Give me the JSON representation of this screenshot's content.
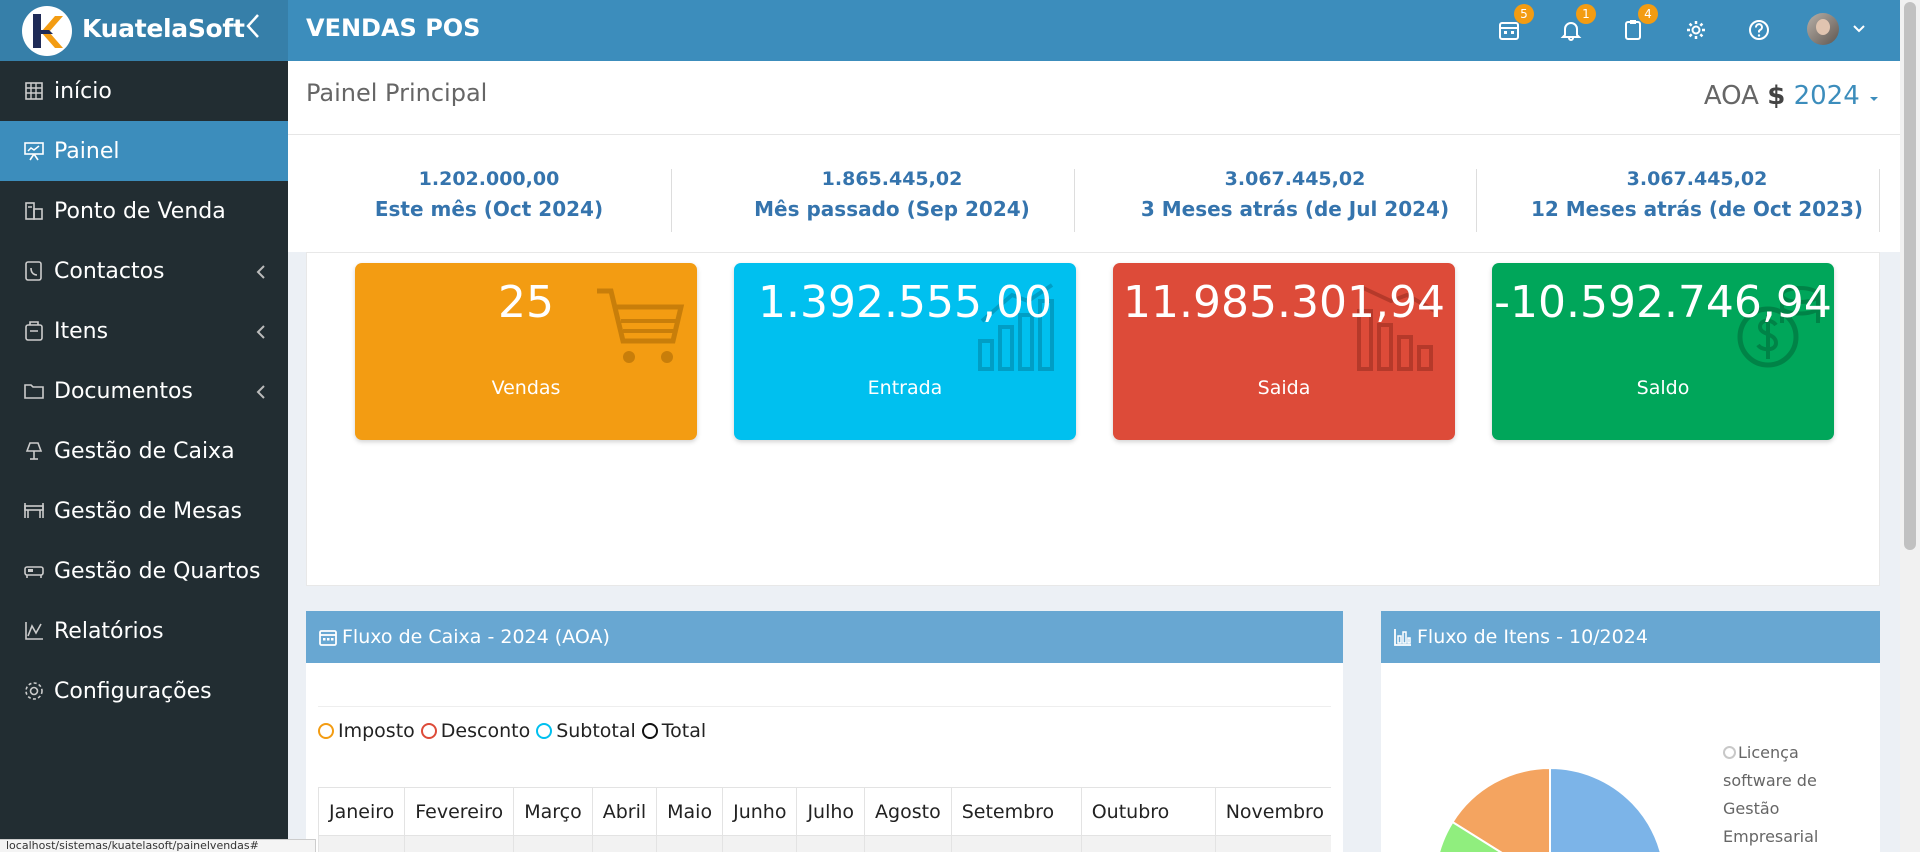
{
  "topbar": {
    "brand": "KuatelaSoft",
    "collapse_icon": "chevron-left-icon",
    "title": "VENDAS POS",
    "icons": [
      {
        "name": "calendar-icon",
        "badge": "5"
      },
      {
        "name": "bell-icon",
        "badge": "1"
      },
      {
        "name": "clipboard-icon",
        "badge": "4"
      },
      {
        "name": "gear-icon",
        "badge": ""
      },
      {
        "name": "help-icon",
        "badge": ""
      }
    ],
    "user_caret": "chevron-down-icon"
  },
  "sidebar": {
    "items": [
      {
        "label": "início",
        "icon": "grid-icon",
        "active": false,
        "has_children": false
      },
      {
        "label": "Painel",
        "icon": "presentation-icon",
        "active": true,
        "has_children": false
      },
      {
        "label": "Ponto de Venda",
        "icon": "pos-icon",
        "active": false,
        "has_children": false
      },
      {
        "label": "Contactos",
        "icon": "contacts-icon",
        "active": false,
        "has_children": true
      },
      {
        "label": "Itens",
        "icon": "items-icon",
        "active": false,
        "has_children": true
      },
      {
        "label": "Documentos",
        "icon": "folder-icon",
        "active": false,
        "has_children": true
      },
      {
        "label": "Gestão de Caixa",
        "icon": "lamp-icon",
        "active": false,
        "has_children": false
      },
      {
        "label": "Gestão de Mesas",
        "icon": "table-icon",
        "active": false,
        "has_children": false
      },
      {
        "label": "Gestão de Quartos",
        "icon": "bed-icon",
        "active": false,
        "has_children": false
      },
      {
        "label": "Relatórios",
        "icon": "chart-icon",
        "active": false,
        "has_children": false
      },
      {
        "label": "Configurações",
        "icon": "gear-icon",
        "active": false,
        "has_children": false
      }
    ]
  },
  "header": {
    "title": "Painel Principal",
    "currency": "AOA",
    "currency_symbol": "$",
    "year": "2024"
  },
  "stats": [
    {
      "value": "1.202.000,00",
      "label": "Este mês (Oct 2024)"
    },
    {
      "value": "1.865.445,02",
      "label": "Mês passado (Sep 2024)"
    },
    {
      "value": "3.067.445,02",
      "label": "3 Meses atrás (de Jul 2024)"
    },
    {
      "value": "3.067.445,02",
      "label": "12 Meses atrás (de Oct 2023)"
    }
  ],
  "cards": [
    {
      "value": "25",
      "label": "Vendas",
      "color": "#f39c12",
      "icon": "cart-icon"
    },
    {
      "value": "1.392.555,00",
      "label": "Entrada",
      "color": "#00c0ef",
      "icon": "chart-up-icon"
    },
    {
      "value": "11.985.301,94",
      "label": "Saida",
      "color": "#dd4b39",
      "icon": "chart-down-icon"
    },
    {
      "value": "-10.592.746,94",
      "label": "Saldo",
      "color": "#00a65a",
      "icon": "coins-icon"
    }
  ],
  "cashflow": {
    "title": "Fluxo de Caixa - 2024 (AOA)",
    "legend": [
      {
        "label": "Imposto",
        "color": "#f39c12"
      },
      {
        "label": "Desconto",
        "color": "#dd4b39"
      },
      {
        "label": "Subtotal",
        "color": "#00c0ef"
      },
      {
        "label": "Total",
        "color": "#111111"
      }
    ],
    "months": [
      "Janeiro",
      "Fevereiro",
      "Março",
      "Abril",
      "Maio",
      "Junho",
      "Julho",
      "Agosto",
      "Setembro",
      "Outubro",
      "Novembro"
    ]
  },
  "items_flow": {
    "title": "Fluxo de Itens - 10/2024",
    "legend_label": "Licença software de Gestão Empresarial",
    "slice_colors": [
      "#7cb4e8",
      "#f4a460",
      "#90ee7e"
    ]
  },
  "statusbar": {
    "url": "localhost/sistemas/kuatelasoft/painelvendas#"
  }
}
